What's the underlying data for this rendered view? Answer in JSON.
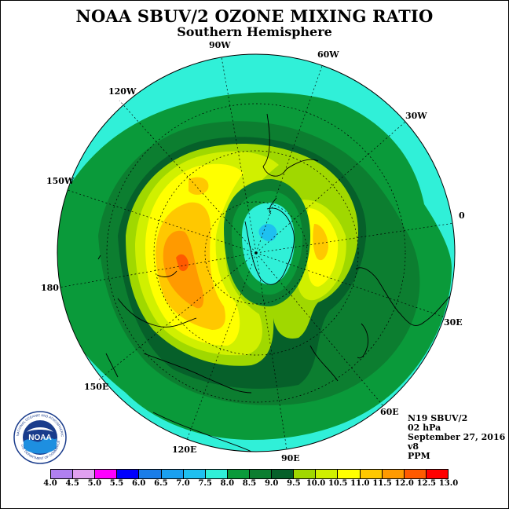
{
  "title": "NOAA SBUV/2 OZONE MIXING RATIO",
  "subtitle": "Southern Hemisphere",
  "longitude_labels": {
    "w90": "90W",
    "w60": "60W",
    "w120": "120W",
    "w30": "30W",
    "w150": "150W",
    "e0": "0",
    "e180": "180",
    "e30": "30E",
    "e150": "150E",
    "e60": "60E",
    "e120": "120E",
    "e90": "90E"
  },
  "info": {
    "satellite": "N19 SBUV/2",
    "level": "02 hPa",
    "date": "September 27, 2016",
    "version": "v8",
    "units": "PPM"
  },
  "logo": {
    "text": "NOAA",
    "ring_text": "NATIONAL OCEANIC AND ATMOSPHERIC ADMINISTRATION",
    "bottom_text": "U.S. DEPARTMENT OF COMMERCE"
  },
  "colorbar": {
    "ticks": [
      "4.0",
      "4.5",
      "5.0",
      "5.5",
      "6.0",
      "6.5",
      "7.0",
      "7.5",
      "8.0",
      "8.5",
      "9.0",
      "9.5",
      "10.0",
      "10.5",
      "11.0",
      "11.5",
      "12.0",
      "12.5",
      "13.0"
    ],
    "colors": [
      "#b080f0",
      "#e0a0f0",
      "#ff00ff",
      "#0000ff",
      "#1a7de8",
      "#1aa0f0",
      "#1ec0f0",
      "#30f0d8",
      "#0a9a3a",
      "#0c7e30",
      "#06602a",
      "#a0d800",
      "#d0f000",
      "#ffff00",
      "#ffc800",
      "#ff9a00",
      "#ff5a00",
      "#ff0000",
      "#8b5a3c"
    ]
  },
  "chart_data": {
    "type": "heatmap",
    "projection": "south-polar-stereographic",
    "field": "ozone mixing ratio",
    "min_contour_level": 8.0,
    "max_contour_level": 11.5,
    "regions": [
      {
        "range": "8.0-8.5",
        "description": "outer band"
      },
      {
        "range": "10.5-11.0",
        "location": "near 180 / 150W"
      },
      {
        "range": "11.0-11.5",
        "location": "near 180"
      },
      {
        "range": "7.5-8.0",
        "location": "pole interior"
      }
    ]
  }
}
